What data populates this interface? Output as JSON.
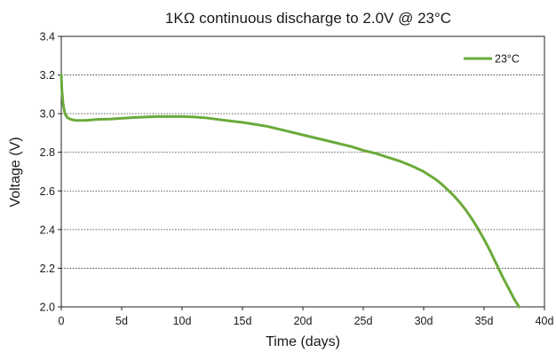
{
  "chart_data": {
    "type": "line",
    "title": "1KΩ continuous discharge to 2.0V @ 23°C",
    "xlabel": "Time (days)",
    "ylabel": "Voltage (V)",
    "xlim": [
      0,
      40
    ],
    "ylim": [
      2.0,
      3.4
    ],
    "x_ticks": [
      0,
      5,
      10,
      15,
      20,
      25,
      30,
      35,
      40
    ],
    "x_tick_labels": [
      "0",
      "5d",
      "10d",
      "15d",
      "20d",
      "25d",
      "30d",
      "35d",
      "40d"
    ],
    "y_ticks": [
      2.0,
      2.2,
      2.4,
      2.6,
      2.8,
      3.0,
      3.2,
      3.4
    ],
    "y_tick_labels": [
      "2.0",
      "2.2",
      "2.4",
      "2.6",
      "2.8",
      "3.0",
      "3.2",
      "3.4"
    ],
    "grid": "horizontal-dotted",
    "legend_position": "top-right",
    "series": [
      {
        "name": "23°C",
        "color": "#6aaa3a",
        "x": [
          0,
          0.05,
          0.15,
          0.3,
          0.5,
          0.8,
          1.2,
          2,
          3,
          4,
          5,
          6,
          7,
          8,
          9,
          10,
          11,
          12,
          13,
          14,
          15,
          16,
          17,
          18,
          19,
          20,
          21,
          22,
          23,
          24,
          25,
          26,
          27,
          28,
          29,
          30,
          31,
          31.5,
          32,
          32.5,
          33,
          33.5,
          34,
          34.5,
          35,
          35.5,
          36,
          36.5,
          37,
          37.5,
          37.9
        ],
        "values": [
          3.2,
          3.12,
          3.05,
          3.0,
          2.98,
          2.97,
          2.965,
          2.965,
          2.97,
          2.972,
          2.976,
          2.98,
          2.983,
          2.985,
          2.985,
          2.985,
          2.983,
          2.978,
          2.97,
          2.962,
          2.955,
          2.945,
          2.935,
          2.92,
          2.905,
          2.89,
          2.875,
          2.86,
          2.845,
          2.83,
          2.81,
          2.795,
          2.775,
          2.755,
          2.73,
          2.7,
          2.66,
          2.635,
          2.605,
          2.575,
          2.54,
          2.5,
          2.455,
          2.405,
          2.35,
          2.29,
          2.225,
          2.16,
          2.1,
          2.04,
          2.0
        ]
      }
    ]
  }
}
